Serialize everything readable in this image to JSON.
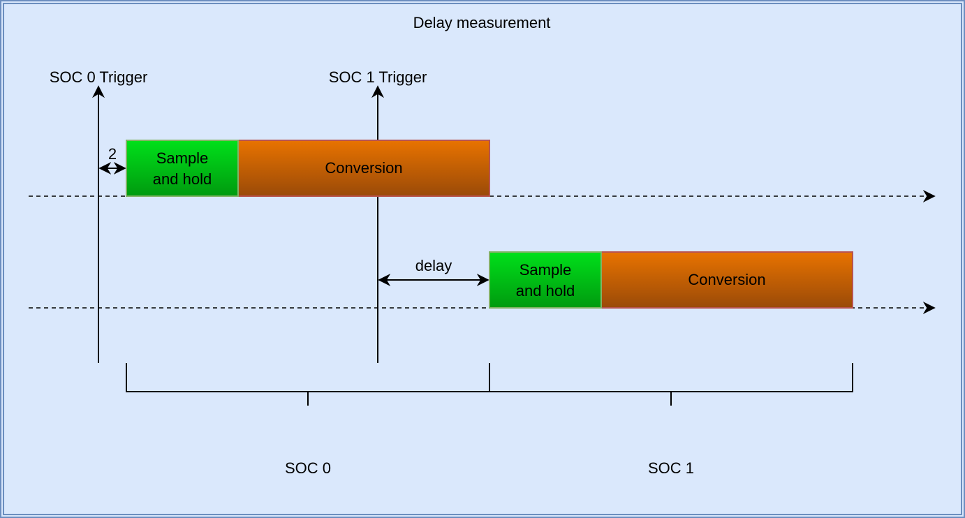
{
  "title": "Delay measurement",
  "triggers": {
    "soc0": "SOC 0 Trigger",
    "soc1": "SOC 1 Trigger"
  },
  "soc0_row": {
    "sample_hold_line1": "Sample",
    "sample_hold_line2": "and hold",
    "conversion": "Conversion",
    "gap_label": "2"
  },
  "soc1_row": {
    "sample_hold_line1": "Sample",
    "sample_hold_line2": "and hold",
    "conversion": "Conversion",
    "delay_label": "delay"
  },
  "brackets": {
    "soc0": "SOC 0",
    "soc1": "SOC 1"
  },
  "colors": {
    "background": "#dae8fc",
    "frame": "#6c8ebf",
    "sample_hold_top": "#00e01a",
    "sample_hold_bottom": "#009a0f",
    "conversion_top": "#e87300",
    "conversion_bottom": "#9a4a08"
  }
}
